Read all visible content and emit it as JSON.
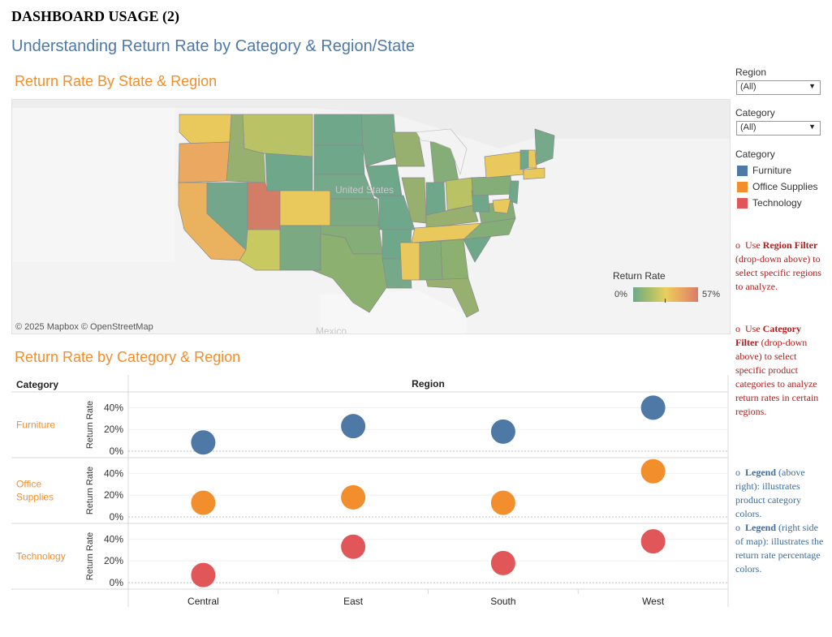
{
  "doc_title": "DASHBOARD USAGE (2)",
  "dashboard_title": "Understanding Return Rate by Category & Region/State",
  "map": {
    "title": "Return Rate By State & Region",
    "attribution": "© 2025 Mapbox  © OpenStreetMap",
    "labels": {
      "united_states": "United States",
      "mexico": "Mexico"
    },
    "legend": {
      "title": "Return Rate",
      "min": "0%",
      "max": "57%"
    }
  },
  "filters": {
    "region": {
      "label": "Region",
      "value": "(All)"
    },
    "category": {
      "label": "Category",
      "value": "(All)"
    }
  },
  "color_legend": {
    "title": "Category",
    "items": [
      {
        "label": "Furniture",
        "color": "#4e79a7"
      },
      {
        "label": "Office Supplies",
        "color": "#f28e2b"
      },
      {
        "label": "Technology",
        "color": "#e15759"
      }
    ]
  },
  "notes": {
    "region_filter": {
      "bullet": "o",
      "prefix": "Use ",
      "bold": "Region Filter",
      "rest": " (drop-down above) to select specific regions to analyze."
    },
    "category_filter": {
      "bullet": "o",
      "prefix": "Use ",
      "bold": "Category Filter",
      "rest": " (drop-down above) to select specific product categories to analyze return rates in certain regions."
    },
    "legend_above": {
      "bullet": "o",
      "bold": "Legend",
      "rest": " (above right): illustrates product category colors."
    },
    "legend_right": {
      "bullet": "o",
      "bold": "Legend",
      "rest": " (right side of map): illustrates the return rate percentage colors."
    }
  },
  "chart_data": {
    "type": "scatter",
    "title": "Return Rate by Category & Region",
    "row_header": "Category",
    "column_header": "Region",
    "ylabel": "Return Rate",
    "yticks": [
      "0%",
      "20%",
      "40%"
    ],
    "ylim": [
      0,
      50
    ],
    "regions": [
      "Central",
      "East",
      "South",
      "West"
    ],
    "series": [
      {
        "name": "Furniture",
        "color": "#4e79a7",
        "values": [
          8,
          23,
          18,
          40
        ]
      },
      {
        "name": "Office Supplies",
        "color": "#f28e2b",
        "values": [
          13,
          18,
          13,
          42
        ]
      },
      {
        "name": "Technology",
        "color": "#e15759",
        "values": [
          7,
          33,
          18,
          38
        ]
      }
    ],
    "row_labels": [
      [
        "Furniture"
      ],
      [
        "Office",
        "Supplies"
      ],
      [
        "Technology"
      ]
    ]
  }
}
